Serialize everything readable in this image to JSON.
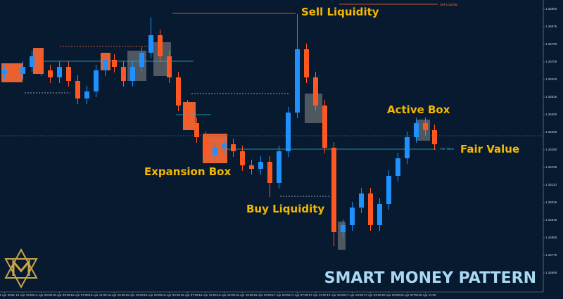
{
  "chart_data": {
    "type": "candlestick",
    "categories": [
      "14 Apr 2026",
      null,
      "14 Apr 19:00",
      null,
      "14 Apr 23:00",
      null,
      "15 Apr 03:00",
      null,
      "15 Apr 07:00",
      null,
      "15 Apr 11:00",
      null,
      "15 Apr 15:00",
      null,
      "15 Apr 19:00",
      null,
      "15 Apr 23:00",
      null,
      "16 Apr 03:00",
      null,
      "16 Apr 07:00",
      null,
      "16 Apr 11:00",
      null,
      "16 Apr 15:00",
      null,
      "16 Apr 19:00",
      null,
      "16 Apr 23:00",
      null,
      "17 Apr 03:00",
      null,
      "17 Apr 07:00",
      null,
      "17 Apr 11:00",
      null,
      "17 Apr 15:00",
      null,
      "17 Apr 19:00",
      null,
      "17 Apr 23:00",
      null,
      "20 Apr 03:00",
      null,
      "20 Apr 07:00",
      null,
      "20 Apr 11:00",
      null
    ],
    "open": [
      1.35647,
      1.35664,
      1.35647,
      1.35681,
      1.35732,
      1.35664,
      1.3563,
      1.35681,
      1.35613,
      1.35528,
      1.35562,
      1.35664,
      1.35715,
      1.35681,
      1.35613,
      1.35681,
      1.35749,
      1.35834,
      1.35732,
      1.3563,
      1.35494,
      1.35409,
      1.35341,
      1.35256,
      1.3529,
      1.35307,
      1.35273,
      1.35205,
      1.35188,
      1.35222,
      1.3512,
      1.35273,
      1.3546,
      1.35766,
      1.3563,
      1.35494,
      1.3529,
      1.34882,
      1.34916,
      1.35001,
      1.35069,
      1.34916,
      1.35018,
      1.35154,
      1.35239,
      1.35341,
      1.35409,
      1.35375
    ],
    "high": [
      1.35691,
      1.35691,
      1.35708,
      1.35759,
      1.35759,
      1.35691,
      1.35708,
      1.35708,
      1.3564,
      1.35589,
      1.35691,
      1.35742,
      1.35742,
      1.35708,
      1.35708,
      1.35776,
      1.3592,
      1.35861,
      1.35759,
      1.35657,
      1.35521,
      1.35436,
      1.35368,
      1.35317,
      1.35334,
      1.35334,
      1.353,
      1.35232,
      1.35249,
      1.35249,
      1.353,
      1.35487,
      1.35936,
      1.35793,
      1.35657,
      1.35521,
      1.35317,
      1.34943,
      1.35028,
      1.35096,
      1.35096,
      1.35045,
      1.35181,
      1.35266,
      1.35368,
      1.35436,
      1.35436,
      1.35402
    ],
    "low": [
      1.3562,
      1.3562,
      1.3562,
      1.35654,
      1.35637,
      1.35603,
      1.35603,
      1.35586,
      1.35501,
      1.35501,
      1.35535,
      1.35637,
      1.35654,
      1.35586,
      1.35586,
      1.35654,
      1.35722,
      1.35705,
      1.35603,
      1.35467,
      1.35382,
      1.35314,
      1.35229,
      1.35229,
      1.35263,
      1.35246,
      1.35178,
      1.35161,
      1.35161,
      1.35052,
      1.35093,
      1.35246,
      1.35433,
      1.35603,
      1.35467,
      1.35263,
      1.34814,
      1.34855,
      1.34889,
      1.34974,
      1.34889,
      1.34889,
      1.34991,
      1.35127,
      1.35212,
      1.35314,
      1.35348,
      1.3528
    ],
    "close": [
      1.35664,
      1.35647,
      1.35681,
      1.35732,
      1.35664,
      1.3563,
      1.35681,
      1.35613,
      1.35528,
      1.35562,
      1.35664,
      1.35715,
      1.35681,
      1.35613,
      1.35681,
      1.35749,
      1.35834,
      1.35732,
      1.3563,
      1.35494,
      1.35409,
      1.35341,
      1.35256,
      1.3529,
      1.35307,
      1.35273,
      1.35205,
      1.35188,
      1.35222,
      1.3512,
      1.35273,
      1.3546,
      1.35766,
      1.3563,
      1.35494,
      1.3529,
      1.34882,
      1.34916,
      1.35001,
      1.35069,
      1.34916,
      1.35018,
      1.35154,
      1.35239,
      1.35341,
      1.35409,
      1.35375,
      1.35307
    ],
    "up_color": "#1e90ff",
    "down_color": "#ff5722",
    "ylim": [
      1.34593,
      1.36004
    ],
    "yticks": [
      {
        "value": 1.3596,
        "label": "1.35960"
      },
      {
        "value": 1.35875,
        "label": "1.35875"
      },
      {
        "value": 1.3579,
        "label": "1.35790"
      },
      {
        "value": 1.35705,
        "label": "1.35705"
      },
      {
        "value": 1.3562,
        "label": "1.35620"
      },
      {
        "value": 1.35535,
        "label": "1.35535"
      },
      {
        "value": 1.3545,
        "label": "1.35450"
      },
      {
        "value": 1.35365,
        "label": "1.35365"
      },
      {
        "value": 1.3528,
        "label": "1.35280"
      },
      {
        "value": 1.35195,
        "label": "1.35195"
      },
      {
        "value": 1.3511,
        "label": "1.35110"
      },
      {
        "value": 1.35025,
        "label": "1.35025"
      },
      {
        "value": 1.3494,
        "label": "1.34940"
      },
      {
        "value": 1.34855,
        "label": "1.34855"
      },
      {
        "value": 1.3477,
        "label": "1.34770"
      },
      {
        "value": 1.34685,
        "label": "1.34685"
      }
    ],
    "annotations": {
      "sell_liquidity": "Sell Liquidity",
      "sell_liquidity_small": "Sell Liquidity",
      "active_box": "Active Box",
      "fair_value": "Fair Value",
      "fair_value_small": "Fair Value",
      "expansion_box": "Expansion Box",
      "buy_liquidity": "Buy Liquidity",
      "brand": "SMART MONEY PATTERN"
    }
  }
}
